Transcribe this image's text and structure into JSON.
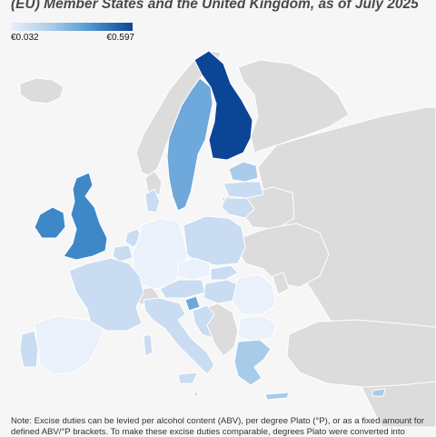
{
  "title": "(EU) Member States and the United Kingdom, as of July 2025",
  "legend": {
    "min_label": "€0.032",
    "max_label": "€0.597",
    "colors": [
      "#e8f0fb",
      "#a9cbea",
      "#4d93cf",
      "#0b4596"
    ]
  },
  "note": "Note: Excise duties can be levied per alcohol content (ABV), per degree Plato (°P), or as a fixed amount for defined ABV/°P brackets. To make these excise duties comparable, degrees Plato were converted into",
  "colors": {
    "non_member": "#dcdcdc",
    "background": "#f6f6f6",
    "darkest": "#0b4596",
    "dark": "#3f88c8",
    "medium": "#6fa8da",
    "light": "#a9cbea",
    "lighter": "#c9dcf1",
    "lightest": "#eaf1fb"
  },
  "countries": [
    {
      "name": "Finland",
      "shade": "darkest"
    },
    {
      "name": "Sweden",
      "shade": "medium"
    },
    {
      "name": "Ireland",
      "shade": "dark"
    },
    {
      "name": "United Kingdom",
      "shade": "dark"
    },
    {
      "name": "Estonia",
      "shade": "light"
    },
    {
      "name": "Latvia",
      "shade": "lighter"
    },
    {
      "name": "Lithuania",
      "shade": "lighter"
    },
    {
      "name": "Denmark",
      "shade": "lighter"
    },
    {
      "name": "Poland",
      "shade": "lighter"
    },
    {
      "name": "Germany",
      "shade": "lightest"
    },
    {
      "name": "Netherlands",
      "shade": "lighter"
    },
    {
      "name": "Belgium",
      "shade": "lighter"
    },
    {
      "name": "France",
      "shade": "lighter"
    },
    {
      "name": "Spain",
      "shade": "lightest"
    },
    {
      "name": "Portugal",
      "shade": "lighter"
    },
    {
      "name": "Italy",
      "shade": "lighter"
    },
    {
      "name": "Slovenia",
      "shade": "medium"
    },
    {
      "name": "Austria",
      "shade": "lighter"
    },
    {
      "name": "Czechia",
      "shade": "lightest"
    },
    {
      "name": "Slovakia",
      "shade": "lighter"
    },
    {
      "name": "Hungary",
      "shade": "lighter"
    },
    {
      "name": "Romania",
      "shade": "lightest"
    },
    {
      "name": "Bulgaria",
      "shade": "lightest"
    },
    {
      "name": "Greece",
      "shade": "light"
    },
    {
      "name": "Croatia",
      "shade": "lighter"
    },
    {
      "name": "Cyprus",
      "shade": "light"
    },
    {
      "name": "Malta",
      "shade": "lighter"
    }
  ]
}
